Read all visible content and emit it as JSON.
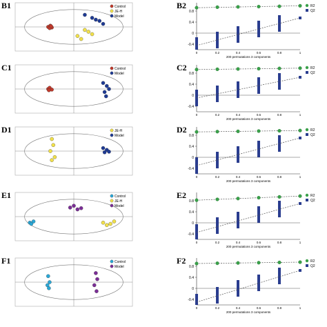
{
  "figure": {
    "rows": [
      {
        "left": {
          "label": "B1",
          "legend": [
            "Control",
            "JE-H",
            "Model"
          ]
        },
        "right": {
          "label": "B2",
          "xlabel": "200 permutations 3 components"
        }
      },
      {
        "left": {
          "label": "C1",
          "legend": [
            "Control",
            "Model"
          ]
        },
        "right": {
          "label": "C2",
          "xlabel": "200 permutations 3 components"
        }
      },
      {
        "left": {
          "label": "D1",
          "legend": [
            "JE-H",
            "Model"
          ]
        },
        "right": {
          "label": "D2",
          "xlabel": "200 permutations 3 components"
        }
      },
      {
        "left": {
          "label": "E1",
          "legend": [
            "Control",
            "JE-H",
            "Model"
          ]
        },
        "right": {
          "label": "E2",
          "xlabel": "200 permutations 3 components"
        }
      },
      {
        "left": {
          "label": "F1",
          "legend": [
            "Control",
            "Model"
          ]
        },
        "right": {
          "label": "F2",
          "xlabel": "200 permutations 3 components"
        }
      }
    ],
    "perm_legend": [
      "R2",
      "Q2"
    ],
    "colors": {
      "Control": "#c0392b",
      "JE-H": "#f1e04a",
      "Model": "#1f3b94",
      "Control_cyan": "#2aa7d6",
      "Model_purple": "#7b2e96",
      "R2": "#3aa04a",
      "Q2": "#2a3d8f"
    }
  },
  "chart_data": [
    {
      "type": "scatter",
      "title": "",
      "groups": [
        {
          "name": "Control",
          "points": [
            [
              -35,
              0
            ],
            [
              -32,
              2
            ],
            [
              -30,
              -1
            ],
            [
              -33,
              -2
            ],
            [
              -31,
              1
            ]
          ]
        },
        {
          "name": "JE-H",
          "points": [
            [
              5,
              -15
            ],
            [
              15,
              -5
            ],
            [
              10,
              -20
            ],
            [
              25,
              -12
            ],
            [
              20,
              -8
            ]
          ]
        },
        {
          "name": "Model",
          "points": [
            [
              15,
              20
            ],
            [
              25,
              15
            ],
            [
              35,
              10
            ],
            [
              40,
              5
            ],
            [
              30,
              12
            ]
          ]
        }
      ]
    },
    {
      "type": "scatter",
      "title": "",
      "groups": [
        {
          "name": "Control",
          "points": [
            [
              -35,
              0
            ],
            [
              -33,
              2
            ],
            [
              -30,
              -1
            ],
            [
              -34,
              -2
            ]
          ]
        },
        {
          "name": "Model",
          "points": [
            [
              40,
              10
            ],
            [
              45,
              5
            ],
            [
              42,
              -5
            ],
            [
              48,
              0
            ],
            [
              44,
              -12
            ]
          ]
        }
      ]
    },
    {
      "type": "scatter",
      "title": "",
      "groups": [
        {
          "name": "JE-H",
          "points": [
            [
              -30,
              20
            ],
            [
              -28,
              10
            ],
            [
              -32,
              0
            ],
            [
              -26,
              -10
            ],
            [
              -30,
              -15
            ]
          ]
        },
        {
          "name": "Model",
          "points": [
            [
              40,
              5
            ],
            [
              45,
              2
            ],
            [
              42,
              -2
            ],
            [
              48,
              -1
            ]
          ]
        }
      ]
    },
    {
      "type": "scatter",
      "title": "",
      "groups": [
        {
          "name": "Control",
          "points": [
            [
              -60,
              -10
            ],
            [
              -55,
              -8
            ],
            [
              -58,
              -12
            ]
          ]
        },
        {
          "name": "JE-H",
          "points": [
            [
              40,
              -10
            ],
            [
              50,
              -12
            ],
            [
              55,
              -8
            ],
            [
              45,
              -14
            ]
          ]
        },
        {
          "name": "Model",
          "points": [
            [
              -5,
              15
            ],
            [
              5,
              12
            ],
            [
              10,
              14
            ],
            [
              0,
              18
            ]
          ]
        }
      ]
    },
    {
      "type": "scatter",
      "title": "",
      "groups": [
        {
          "name": "Control",
          "points": [
            [
              -35,
              10
            ],
            [
              -33,
              0
            ],
            [
              -36,
              -5
            ],
            [
              -34,
              -10
            ]
          ]
        },
        {
          "name": "Model",
          "points": [
            [
              30,
              15
            ],
            [
              32,
              5
            ],
            [
              28,
              -5
            ],
            [
              31,
              -15
            ]
          ]
        }
      ]
    },
    {
      "type": "scatter",
      "xlabel": "200 permutations 3 components",
      "series": [
        {
          "name": "R2",
          "x": [
            0,
            0.2,
            0.4,
            0.6,
            0.8,
            1
          ],
          "y": [
            0.92,
            0.94,
            0.95,
            0.96,
            0.97,
            0.99
          ]
        },
        {
          "name": "Q2",
          "x": [
            0,
            0.2,
            0.4,
            0.6,
            0.8,
            1
          ],
          "y": [
            -0.45,
            -0.25,
            -0.05,
            0.15,
            0.35,
            0.55
          ]
        }
      ],
      "ylim": [
        -0.6,
        1.1
      ]
    },
    {
      "type": "scatter",
      "xlabel": "200 permutations 3 components",
      "series": [
        {
          "name": "R2",
          "x": [
            0,
            0.2,
            0.4,
            0.6,
            0.8,
            1
          ],
          "y": [
            0.93,
            0.94,
            0.95,
            0.96,
            0.97,
            0.98
          ]
        },
        {
          "name": "Q2",
          "x": [
            0,
            0.2,
            0.4,
            0.6,
            0.8,
            1
          ],
          "y": [
            -0.1,
            0.05,
            0.2,
            0.35,
            0.5,
            0.65
          ]
        }
      ],
      "ylim": [
        -0.6,
        1.1
      ]
    },
    {
      "type": "scatter",
      "xlabel": "200 permutations 3 components",
      "series": [
        {
          "name": "R2",
          "x": [
            0,
            0.2,
            0.4,
            0.6,
            0.8,
            1
          ],
          "y": [
            0.92,
            0.93,
            0.94,
            0.95,
            0.96,
            0.97
          ]
        },
        {
          "name": "Q2",
          "x": [
            0,
            0.2,
            0.4,
            0.6,
            0.8,
            1
          ],
          "y": [
            -0.3,
            -0.1,
            0.1,
            0.3,
            0.5,
            0.7
          ]
        }
      ],
      "ylim": [
        -0.6,
        1.1
      ]
    },
    {
      "type": "scatter",
      "xlabel": "200 permutations 3 components",
      "series": [
        {
          "name": "R2",
          "x": [
            0,
            0.2,
            0.4,
            0.6,
            0.8,
            1
          ],
          "y": [
            0.82,
            0.85,
            0.88,
            0.91,
            0.94,
            0.97
          ]
        },
        {
          "name": "Q2",
          "x": [
            0,
            0.2,
            0.4,
            0.6,
            0.8,
            1
          ],
          "y": [
            -0.35,
            -0.1,
            0.1,
            0.3,
            0.5,
            0.7
          ]
        }
      ],
      "ylim": [
        -0.6,
        1.1
      ]
    },
    {
      "type": "scatter",
      "xlabel": "200 permutations 3 components",
      "series": [
        {
          "name": "R2",
          "x": [
            0,
            0.2,
            0.4,
            0.6,
            0.8,
            1
          ],
          "y": [
            0.9,
            0.91,
            0.92,
            0.93,
            0.94,
            0.95
          ]
        },
        {
          "name": "Q2",
          "x": [
            0,
            0.2,
            0.4,
            0.6,
            0.8,
            1
          ],
          "y": [
            -0.5,
            -0.25,
            0.0,
            0.2,
            0.45,
            0.65
          ]
        }
      ],
      "ylim": [
        -0.6,
        1.1
      ]
    }
  ]
}
